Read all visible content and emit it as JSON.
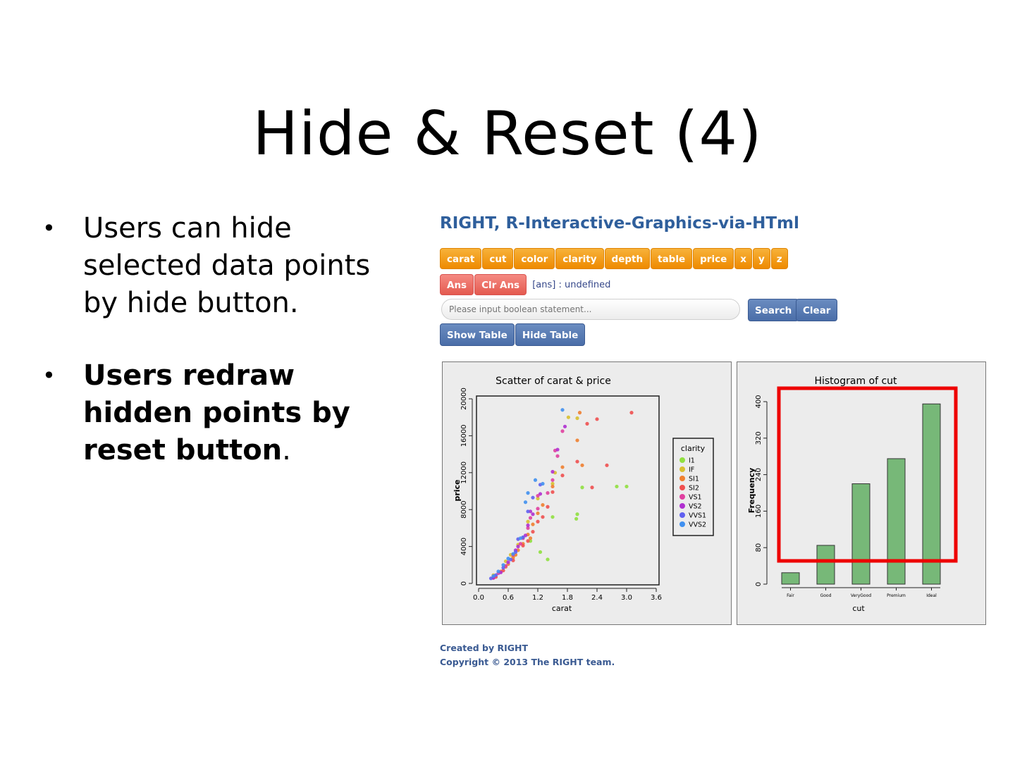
{
  "slide": {
    "title": "Hide & Reset (4)",
    "bullets": [
      {
        "text": "Users can hide selected data points by hide button.",
        "bold": false
      },
      {
        "text": "Users redraw hidden points by reset button",
        "suffix": ".",
        "bold": true
      }
    ]
  },
  "app": {
    "title": "RIGHT, R-Interactive-Graphics-via-HTml",
    "column_buttons": [
      "carat",
      "cut",
      "color",
      "clarity",
      "depth",
      "table",
      "price",
      "x",
      "y",
      "z"
    ],
    "ans_button": "Ans",
    "clr_ans_button": "Clr Ans",
    "ans_output": "[ans] : undefined",
    "search": {
      "placeholder": "Please input boolean statement...",
      "search_label": "Search",
      "clear_label": "Clear"
    },
    "show_table_label": "Show Table",
    "hide_table_label": "Hide Table",
    "footer": {
      "created": "Created by RIGHT",
      "copyright": "Copyright © 2013 The RIGHT team."
    }
  },
  "colors": {
    "orange_button": "#ee8a00",
    "red_button": "#e45a4f",
    "blue_button": "#4a6ea8",
    "highlight_box": "#ee0000",
    "histogram_bar": "#77b878"
  },
  "chart_data": [
    {
      "type": "scatter",
      "title": "Scatter of carat & price",
      "xlabel": "carat",
      "ylabel": "price",
      "xlim": [
        0,
        3.6
      ],
      "ylim": [
        0,
        20000
      ],
      "xticks": [
        "0.0",
        "0.6",
        "1.2",
        "1.8",
        "2.4",
        "3.0",
        "3.6"
      ],
      "yticks": [
        "0",
        "4000",
        "8000",
        "12000",
        "16000",
        "20000"
      ],
      "legend": {
        "title": "clarity",
        "placement": "right",
        "entries": [
          {
            "name": "I1",
            "color": "#90e040"
          },
          {
            "name": "IF",
            "color": "#d8c030"
          },
          {
            "name": "SI1",
            "color": "#f08030"
          },
          {
            "name": "SI2",
            "color": "#f05050"
          },
          {
            "name": "VS1",
            "color": "#e040a0"
          },
          {
            "name": "VS2",
            "color": "#b030d0"
          },
          {
            "name": "VVS1",
            "color": "#6060f0"
          },
          {
            "name": "VVS2",
            "color": "#4090f0"
          }
        ]
      },
      "series": [
        {
          "name": "I1",
          "points": [
            [
              0.7,
              3000
            ],
            [
              1.05,
              4600
            ],
            [
              1.25,
              3400
            ],
            [
              1.4,
              2600
            ],
            [
              1.5,
              7200
            ],
            [
              1.98,
              7000
            ],
            [
              2.0,
              7500
            ],
            [
              2.1,
              10400
            ],
            [
              2.8,
              10500
            ],
            [
              3.0,
              10500
            ]
          ]
        },
        {
          "name": "IF",
          "points": [
            [
              0.3,
              900
            ],
            [
              0.55,
              2400
            ],
            [
              0.8,
              4200
            ],
            [
              1.0,
              6700
            ],
            [
              1.2,
              9200
            ],
            [
              1.5,
              10800
            ],
            [
              1.55,
              12000
            ],
            [
              1.82,
              18000
            ],
            [
              2.0,
              17900
            ],
            [
              0.65,
              3100
            ]
          ]
        },
        {
          "name": "SI1",
          "points": [
            [
              0.3,
              600
            ],
            [
              0.45,
              1300
            ],
            [
              0.55,
              1800
            ],
            [
              0.7,
              2800
            ],
            [
              0.8,
              3600
            ],
            [
              0.9,
              4300
            ],
            [
              1.0,
              5300
            ],
            [
              1.1,
              6400
            ],
            [
              1.2,
              7600
            ],
            [
              1.3,
              8500
            ],
            [
              1.5,
              10500
            ],
            [
              1.7,
              12600
            ],
            [
              2.0,
              15500
            ],
            [
              2.1,
              12800
            ],
            [
              2.05,
              18500
            ],
            [
              1.05,
              4900
            ],
            [
              0.75,
              3100
            ],
            [
              0.6,
              2100
            ]
          ]
        },
        {
          "name": "SI2",
          "points": [
            [
              0.35,
              700
            ],
            [
              0.5,
              1400
            ],
            [
              0.7,
              2500
            ],
            [
              0.9,
              4100
            ],
            [
              1.0,
              4600
            ],
            [
              1.1,
              5600
            ],
            [
              1.2,
              6700
            ],
            [
              1.4,
              8300
            ],
            [
              1.5,
              9900
            ],
            [
              1.7,
              11700
            ],
            [
              2.0,
              13200
            ],
            [
              2.2,
              17300
            ],
            [
              2.4,
              17800
            ],
            [
              2.6,
              12800
            ],
            [
              3.1,
              18500
            ],
            [
              2.3,
              10400
            ],
            [
              1.3,
              7200
            ]
          ]
        },
        {
          "name": "VS1",
          "points": [
            [
              0.3,
              700
            ],
            [
              0.4,
              1100
            ],
            [
              0.55,
              1900
            ],
            [
              0.7,
              3100
            ],
            [
              0.85,
              4300
            ],
            [
              1.0,
              6000
            ],
            [
              1.05,
              7100
            ],
            [
              1.2,
              8100
            ],
            [
              1.4,
              9800
            ],
            [
              1.5,
              11200
            ],
            [
              1.55,
              14400
            ],
            [
              1.6,
              13800
            ],
            [
              1.7,
              16500
            ],
            [
              1.2,
              9500
            ],
            [
              0.9,
              4900
            ]
          ]
        },
        {
          "name": "VS2",
          "points": [
            [
              0.3,
              600
            ],
            [
              0.45,
              1200
            ],
            [
              0.6,
              2300
            ],
            [
              0.8,
              4000
            ],
            [
              0.95,
              5200
            ],
            [
              1.0,
              6300
            ],
            [
              1.1,
              7500
            ],
            [
              1.25,
              9700
            ],
            [
              1.5,
              12100
            ],
            [
              1.6,
              14500
            ],
            [
              1.75,
              17000
            ],
            [
              1.05,
              7800
            ],
            [
              0.75,
              3600
            ]
          ]
        },
        {
          "name": "VVS1",
          "points": [
            [
              0.25,
              550
            ],
            [
              0.35,
              900
            ],
            [
              0.5,
              1700
            ],
            [
              0.65,
              2600
            ],
            [
              0.75,
              3400
            ],
            [
              0.9,
              5000
            ],
            [
              1.0,
              7800
            ],
            [
              1.1,
              9300
            ],
            [
              1.25,
              10700
            ],
            [
              0.8,
              4800
            ]
          ]
        },
        {
          "name": "VVS2",
          "points": [
            [
              0.3,
              800
            ],
            [
              0.4,
              1300
            ],
            [
              0.5,
              2000
            ],
            [
              0.6,
              2700
            ],
            [
              0.7,
              3200
            ],
            [
              0.85,
              4900
            ],
            [
              1.0,
              9800
            ],
            [
              1.15,
              11200
            ],
            [
              1.3,
              10800
            ],
            [
              1.7,
              18800
            ],
            [
              0.95,
              8800
            ]
          ]
        }
      ]
    },
    {
      "type": "bar",
      "title": "Histogram of cut",
      "xlabel": "cut",
      "ylabel": "Frequency",
      "ylim": [
        0,
        400
      ],
      "yticks": [
        "0",
        "80",
        "160",
        "240",
        "320",
        "400"
      ],
      "categories": [
        "Fair",
        "Good",
        "VeryGood",
        "Premium",
        "Ideal"
      ],
      "values": [
        25,
        85,
        220,
        275,
        395
      ]
    }
  ]
}
